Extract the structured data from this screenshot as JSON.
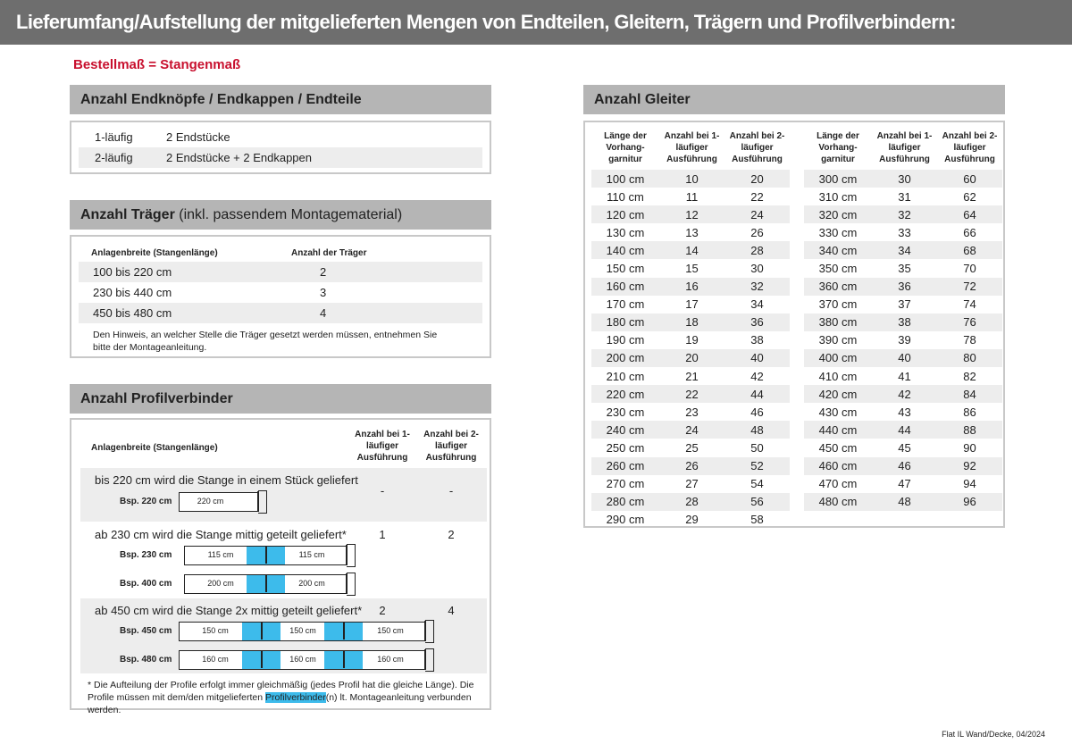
{
  "title": "Lieferumfang/Aufstellung der mitgelieferten Mengen von Endteilen, Gleitern, Trägern und Profilverbindern:",
  "order_note": "Bestellmaß = Stangenmaß",
  "colors": {
    "header": "#6e6e6e",
    "section": "#b5b5b5",
    "accent_red": "#c8102e",
    "connector_blue": "#3dbbeb"
  },
  "endteile": {
    "heading": "Anzahl Endknöpfe / Endkappen / Endteile",
    "rows": [
      [
        "1-läufig",
        "2 Endstücke"
      ],
      [
        "2-läufig",
        "2 Endstücke + 2 Endkappen"
      ]
    ]
  },
  "traeger": {
    "heading": "Anzahl Träger",
    "heading_extra": "(inkl. passendem Montagematerial)",
    "col1": "Anlagenbreite (Stangenlänge)",
    "col2": "Anzahl der Träger",
    "rows": [
      [
        "100 bis 220 cm",
        "2"
      ],
      [
        "230 bis 440 cm",
        "3"
      ],
      [
        "450 bis 480 cm",
        "4"
      ]
    ],
    "note": "Den Hinweis, an welcher Stelle die Träger gesetzt werden müssen, entnehmen Sie bitte der Montageanleitung."
  },
  "profil": {
    "heading": "Anzahl Profilverbinder",
    "col1": "Anlagenbreite (Stangenlänge)",
    "col2": "Anzahl bei 1-läufiger Ausführung",
    "col3": "Anzahl bei 2-läufiger Ausführung",
    "groups": [
      {
        "text": "bis 220 cm wird die Stange in einem Stück geliefert",
        "v1": "-",
        "v2": "-",
        "examples": [
          {
            "label": "Bsp. 220 cm",
            "parts": [
              "220 cm"
            ]
          }
        ]
      },
      {
        "text": "ab 230 cm wird die Stange mittig geteilt geliefert*",
        "v1": "1",
        "v2": "2",
        "examples": [
          {
            "label": "Bsp. 230 cm",
            "parts": [
              "115 cm",
              "115 cm"
            ]
          },
          {
            "label": "Bsp. 400 cm",
            "parts": [
              "200 cm",
              "200 cm"
            ]
          }
        ]
      },
      {
        "text": "ab 450 cm wird die Stange 2x mittig geteilt geliefert*",
        "v1": "2",
        "v2": "4",
        "examples": [
          {
            "label": "Bsp. 450 cm",
            "parts": [
              "150 cm",
              "150 cm",
              "150 cm"
            ]
          },
          {
            "label": "Bsp. 480 cm",
            "parts": [
              "160 cm",
              "160 cm",
              "160 cm"
            ]
          }
        ]
      }
    ],
    "note_a": "* Die Aufteilung der Profile erfolgt immer gleichmäßig (jedes Profil hat die gleiche Länge). Die Profile müssen mit dem/den mitgelieferten ",
    "note_hl": "Profilverbinder",
    "note_b": "(n) lt. Montageanleitung verbunden werden."
  },
  "gleiter": {
    "heading": "Anzahl Gleiter",
    "cols": [
      "Länge der Vorhang-garnitur",
      "Anzahl bei 1-läufiger Ausführung",
      "Anzahl bei 2-läufiger Ausführung"
    ],
    "left": [
      [
        "100 cm",
        "10",
        "20"
      ],
      [
        "110 cm",
        "11",
        "22"
      ],
      [
        "120 cm",
        "12",
        "24"
      ],
      [
        "130 cm",
        "13",
        "26"
      ],
      [
        "140 cm",
        "14",
        "28"
      ],
      [
        "150 cm",
        "15",
        "30"
      ],
      [
        "160 cm",
        "16",
        "32"
      ],
      [
        "170 cm",
        "17",
        "34"
      ],
      [
        "180 cm",
        "18",
        "36"
      ],
      [
        "190 cm",
        "19",
        "38"
      ],
      [
        "200 cm",
        "20",
        "40"
      ],
      [
        "210 cm",
        "21",
        "42"
      ],
      [
        "220 cm",
        "22",
        "44"
      ],
      [
        "230 cm",
        "23",
        "46"
      ],
      [
        "240 cm",
        "24",
        "48"
      ],
      [
        "250 cm",
        "25",
        "50"
      ],
      [
        "260 cm",
        "26",
        "52"
      ],
      [
        "270 cm",
        "27",
        "54"
      ],
      [
        "280 cm",
        "28",
        "56"
      ],
      [
        "290 cm",
        "29",
        "58"
      ]
    ],
    "right": [
      [
        "300 cm",
        "30",
        "60"
      ],
      [
        "310 cm",
        "31",
        "62"
      ],
      [
        "320 cm",
        "32",
        "64"
      ],
      [
        "330 cm",
        "33",
        "66"
      ],
      [
        "340 cm",
        "34",
        "68"
      ],
      [
        "350 cm",
        "35",
        "70"
      ],
      [
        "360 cm",
        "36",
        "72"
      ],
      [
        "370 cm",
        "37",
        "74"
      ],
      [
        "380 cm",
        "38",
        "76"
      ],
      [
        "390 cm",
        "39",
        "78"
      ],
      [
        "400 cm",
        "40",
        "80"
      ],
      [
        "410 cm",
        "41",
        "82"
      ],
      [
        "420 cm",
        "42",
        "84"
      ],
      [
        "430 cm",
        "43",
        "86"
      ],
      [
        "440 cm",
        "44",
        "88"
      ],
      [
        "450 cm",
        "45",
        "90"
      ],
      [
        "460 cm",
        "46",
        "92"
      ],
      [
        "470 cm",
        "47",
        "94"
      ],
      [
        "480 cm",
        "48",
        "96"
      ]
    ]
  },
  "footer": "Flat IL Wand/Decke, 04/2024"
}
